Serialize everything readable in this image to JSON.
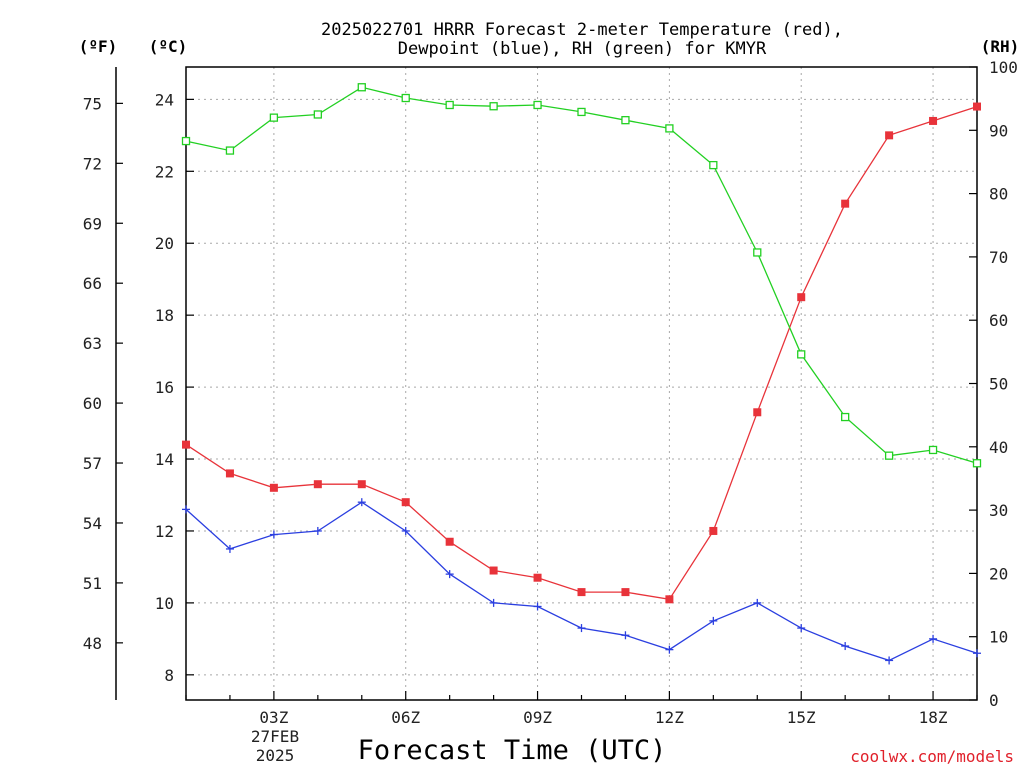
{
  "chart_data": {
    "type": "line",
    "title": [
      "2025022701 HRRR Forecast 2-meter Temperature (red),",
      "Dewpoint (blue), RH (green) for KMYR"
    ],
    "xlabel": "Forecast Time (UTC)",
    "date_label": [
      "27FEB",
      "2025"
    ],
    "credit": "coolwx.com/models",
    "units": {
      "fahrenheit": "(ºF)",
      "celsius": "(ºC)",
      "rh": "(RH)"
    },
    "x": [
      1,
      2,
      3,
      4,
      5,
      6,
      7,
      8,
      9,
      10,
      11,
      12,
      13,
      14,
      15,
      16,
      17,
      18,
      19
    ],
    "x_tick_values": [
      3,
      6,
      9,
      12,
      15,
      18
    ],
    "x_tick_labels": [
      "03Z",
      "06Z",
      "09Z",
      "12Z",
      "15Z",
      "18Z"
    ],
    "xlim": [
      1,
      19
    ],
    "y_left": {
      "label": "(ºC)",
      "ylim": [
        7.3,
        24.9
      ],
      "ticks": [
        8,
        10,
        12,
        14,
        16,
        18,
        20,
        22,
        24
      ]
    },
    "y_fahrenheit": {
      "label": "(ºF)",
      "ticks": [
        48,
        51,
        54,
        57,
        60,
        63,
        66,
        69,
        72,
        75
      ]
    },
    "y_right": {
      "label": "(RH)",
      "ylim": [
        0,
        100
      ],
      "ticks": [
        0,
        10,
        20,
        30,
        40,
        50,
        60,
        70,
        80,
        90,
        100
      ]
    },
    "grid": true,
    "series": [
      {
        "name": "Temperature",
        "axis": "left",
        "color": "#e8333a",
        "marker": "filled-square",
        "values": [
          14.4,
          13.6,
          13.2,
          13.3,
          13.3,
          12.8,
          11.7,
          10.9,
          10.7,
          10.3,
          10.3,
          10.1,
          12.0,
          15.3,
          18.5,
          21.1,
          23.0,
          23.4,
          23.8
        ]
      },
      {
        "name": "Dewpoint",
        "axis": "left",
        "color": "#2b3fe0",
        "marker": "plus",
        "values": [
          12.6,
          11.5,
          11.9,
          12.0,
          12.8,
          12.0,
          10.8,
          10.0,
          9.9,
          9.3,
          9.1,
          8.7,
          9.5,
          10.0,
          9.3,
          8.8,
          8.4,
          9.0,
          8.6
        ]
      },
      {
        "name": "RH",
        "axis": "right",
        "color": "#22d022",
        "marker": "open-square",
        "values": [
          88.3,
          86.8,
          92.0,
          92.5,
          96.8,
          95.1,
          94.0,
          93.8,
          94.0,
          92.9,
          91.6,
          90.3,
          84.5,
          70.7,
          54.6,
          44.7,
          38.6,
          39.5,
          37.4
        ]
      }
    ]
  }
}
